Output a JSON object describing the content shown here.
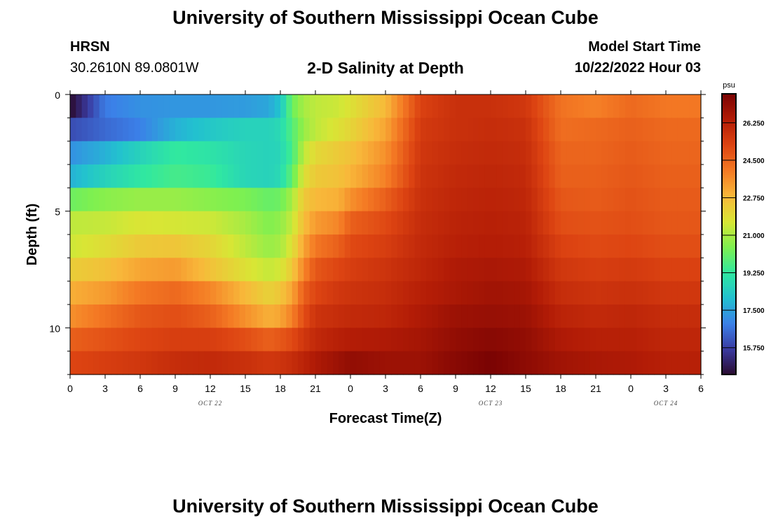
{
  "header": {
    "title": "University of Southern Mississippi Ocean Cube",
    "station_name": "HRSN",
    "station_coords": "30.2610N  89.0801W",
    "subtitle": "2-D Salinity at Depth",
    "model_label": "Model Start Time",
    "model_time": "10/22/2022 Hour 03"
  },
  "footer": {
    "title": "University of Southern Mississippi Ocean Cube"
  },
  "chart_data": {
    "type": "heatmap",
    "title": "2-D Salinity at Depth",
    "xlabel": "Forecast Time(Z)",
    "ylabel": "Depth (ft)",
    "x_tick_labels": [
      "0",
      "3",
      "6",
      "9",
      "12",
      "15",
      "18",
      "21",
      "0",
      "3",
      "6",
      "9",
      "12",
      "15",
      "18",
      "21",
      "0",
      "3",
      "6"
    ],
    "x_hours": [
      0,
      3,
      6,
      9,
      12,
      15,
      18,
      21,
      24,
      27,
      30,
      33,
      36,
      39,
      42,
      45,
      48,
      51,
      54
    ],
    "xlim": [
      0,
      54
    ],
    "date_labels": [
      {
        "label": "OCT 22",
        "hour": 12
      },
      {
        "label": "OCT 23",
        "hour": 36
      },
      {
        "label": "OCT 24",
        "hour": 51
      }
    ],
    "y_tick_labels": [
      "0",
      "5",
      "10"
    ],
    "y_tick_values": [
      0,
      5,
      10
    ],
    "ylim": [
      0,
      12
    ],
    "depth_levels_ft": [
      0.5,
      1.5,
      2.5,
      3.5,
      4.5,
      5.5,
      6.5,
      7.5,
      8.5,
      9.5,
      10.5,
      11.5
    ],
    "time_keyframes_hours": [
      0,
      3,
      6,
      9,
      12,
      15,
      17,
      18,
      19,
      20,
      21,
      23,
      24,
      27,
      30,
      33,
      36,
      39,
      42,
      45,
      48,
      51,
      54
    ],
    "salinity_psu": [
      [
        14.5,
        16.8,
        17.2,
        17.3,
        17.3,
        17.4,
        17.6,
        18.2,
        20.2,
        21.0,
        21.3,
        21.5,
        21.8,
        22.8,
        25.3,
        25.8,
        25.8,
        25.6,
        24.2,
        23.9,
        24.4,
        24.1,
        24.1
      ],
      [
        16.0,
        16.5,
        16.9,
        17.8,
        18.3,
        18.6,
        18.6,
        18.8,
        19.8,
        20.8,
        21.3,
        21.8,
        22.1,
        23.2,
        25.5,
        25.8,
        25.9,
        25.8,
        24.3,
        24.4,
        24.6,
        24.4,
        24.4
      ],
      [
        17.2,
        17.8,
        18.6,
        19.3,
        19.1,
        18.7,
        18.6,
        18.7,
        19.6,
        21.3,
        22.0,
        22.4,
        22.6,
        23.6,
        25.6,
        25.9,
        26.0,
        25.9,
        24.5,
        24.5,
        24.7,
        24.5,
        24.5
      ],
      [
        17.8,
        18.6,
        19.2,
        19.6,
        19.4,
        18.7,
        18.6,
        18.8,
        20.0,
        21.8,
        22.4,
        22.6,
        22.9,
        23.9,
        25.7,
        26.0,
        26.1,
        26.0,
        24.6,
        24.6,
        24.8,
        24.6,
        24.6
      ],
      [
        20.2,
        20.6,
        20.8,
        20.8,
        20.6,
        20.4,
        20.1,
        20.2,
        21.0,
        22.4,
        22.8,
        23.0,
        23.6,
        24.6,
        25.8,
        26.1,
        26.2,
        26.1,
        24.8,
        24.7,
        24.9,
        24.7,
        24.7
      ],
      [
        21.3,
        21.4,
        21.7,
        21.6,
        21.5,
        21.0,
        20.5,
        20.7,
        21.4,
        22.7,
        23.4,
        23.8,
        24.6,
        25.1,
        25.9,
        26.2,
        26.3,
        26.2,
        25.0,
        24.9,
        25.0,
        24.8,
        24.8
      ],
      [
        21.5,
        21.9,
        22.4,
        22.5,
        22.1,
        21.3,
        20.8,
        21.0,
        21.8,
        23.2,
        24.1,
        24.6,
        25.1,
        25.4,
        26.0,
        26.3,
        26.4,
        26.3,
        25.3,
        25.1,
        25.2,
        25.0,
        25.0
      ],
      [
        22.3,
        22.6,
        23.2,
        23.4,
        22.6,
        21.8,
        21.4,
        21.6,
        22.4,
        23.8,
        24.8,
        25.2,
        25.4,
        25.7,
        26.1,
        26.5,
        26.6,
        26.5,
        25.6,
        25.4,
        25.5,
        25.3,
        25.3
      ],
      [
        23.0,
        23.4,
        24.1,
        24.4,
        23.8,
        22.8,
        22.2,
        22.5,
        23.2,
        24.6,
        25.2,
        25.6,
        25.7,
        25.9,
        26.3,
        26.6,
        26.8,
        26.7,
        25.9,
        25.7,
        25.8,
        25.6,
        25.6
      ],
      [
        23.6,
        24.2,
        24.8,
        25.0,
        24.6,
        23.6,
        23.0,
        23.2,
        23.9,
        25.0,
        25.7,
        25.9,
        26.0,
        26.1,
        26.5,
        26.9,
        27.0,
        26.9,
        26.2,
        26.0,
        26.1,
        25.9,
        25.9
      ],
      [
        24.6,
        24.9,
        25.2,
        25.4,
        25.4,
        25.0,
        24.6,
        24.8,
        25.1,
        25.6,
        26.0,
        26.3,
        26.4,
        26.5,
        26.7,
        27.1,
        27.3,
        27.1,
        26.5,
        26.3,
        26.3,
        26.1,
        26.1
      ],
      [
        25.2,
        25.4,
        25.6,
        25.9,
        26.0,
        25.8,
        25.6,
        25.7,
        25.9,
        26.2,
        26.5,
        26.9,
        27.1,
        26.9,
        26.9,
        27.3,
        27.6,
        27.2,
        26.8,
        26.6,
        26.5,
        26.3,
        26.3
      ]
    ],
    "colorbar": {
      "unit": "psu",
      "range": [
        14.5,
        27.6
      ],
      "tick_labels": [
        "15.750",
        "17.500",
        "19.250",
        "21.000",
        "22.750",
        "24.500",
        "26.250"
      ],
      "tick_values": [
        15.75,
        17.5,
        19.25,
        21.0,
        22.75,
        24.5,
        26.25
      ],
      "colors": [
        "#2a0a2e",
        "#3a3aa0",
        "#3b80e8",
        "#22c0d0",
        "#30e8a0",
        "#7ef050",
        "#d8e635",
        "#f8b83a",
        "#f47a24",
        "#dd4412",
        "#b31c06",
        "#7a0303"
      ]
    }
  }
}
